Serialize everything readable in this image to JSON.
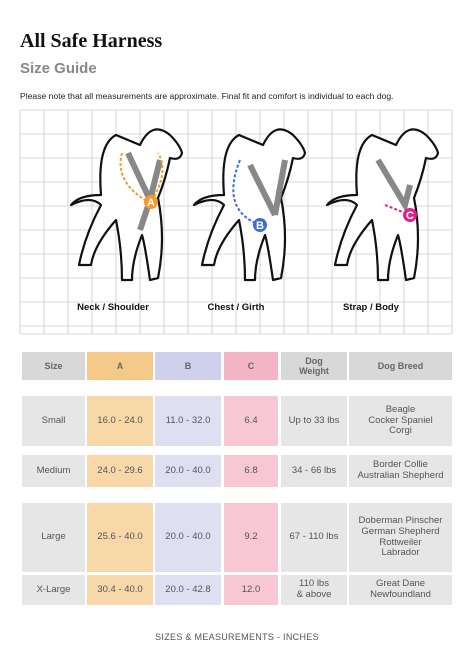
{
  "header": {
    "title": "All Safe Harness",
    "subtitle": "Size Guide",
    "note": "Please note that all measurements are approximate.  Final fit and comfort is individual to each dog."
  },
  "illustration": {
    "markers": [
      "A",
      "B",
      "C"
    ],
    "captions": [
      "Neck / Shoulder",
      "Chest / Girth",
      "Strap / Body"
    ]
  },
  "table": {
    "headers": [
      "Size",
      "A",
      "B",
      "C",
      "Dog Weight",
      "Dog Breed"
    ],
    "rows": [
      [
        "Small",
        "16.0 - 24.0",
        "11.0 - 32.0",
        "6.4",
        "Up to 33 lbs",
        [
          "Beagle",
          "Cocker Spaniel",
          "Corgi"
        ]
      ],
      [
        "Medium",
        "24.0 - 29.6",
        "20.0 - 40.0",
        "6.8",
        "34 - 66 lbs",
        [
          "Border Collie",
          "Australian Shepherd"
        ]
      ],
      [
        "Large",
        "25.6 - 40.0",
        "20.0 - 40.0",
        "9.2",
        "67 - 110 lbs",
        [
          "Doberman Pinscher",
          "German Shepherd",
          "Rottweiler",
          "Labrador"
        ]
      ],
      [
        "X-Large",
        "30.4 - 40.0",
        "20.0 - 42.8",
        "12.0",
        [
          "110 lbs",
          "& above"
        ],
        [
          "Great Dane",
          "Newfoundland"
        ]
      ]
    ]
  },
  "footer": "SIZES & MEASUREMENTS - INCHES"
}
